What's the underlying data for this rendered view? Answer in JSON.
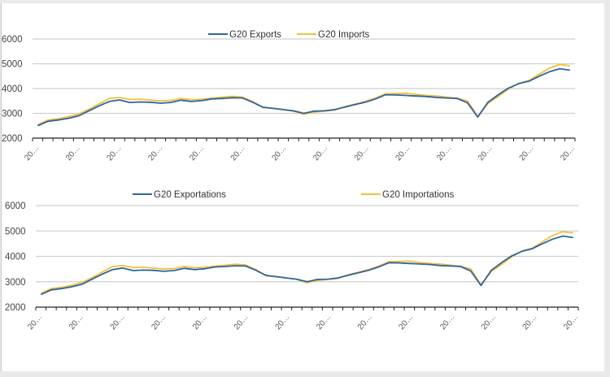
{
  "colors": {
    "exports": "#2e64a0",
    "imports": "#f3c03a"
  },
  "chart_data": [
    {
      "type": "line",
      "title": "",
      "xlabel": "",
      "ylabel": "",
      "ylim": [
        2000,
        6000
      ],
      "yticks": [
        "2000",
        "3000",
        "4000",
        "5000",
        "6000"
      ],
      "grid": true,
      "legend_position": "top-center",
      "x_tick_labels": [
        "20…",
        "20…",
        "20…",
        "20…",
        "20…",
        "20…",
        "20…",
        "20…",
        "20…",
        "20…",
        "20…",
        "20…",
        "20…",
        "20…"
      ],
      "series": [
        {
          "name": "G20 Exports",
          "color_key": "exports",
          "values": [
            2500,
            2680,
            2730,
            2800,
            2900,
            3100,
            3300,
            3480,
            3540,
            3440,
            3460,
            3450,
            3410,
            3440,
            3530,
            3480,
            3510,
            3580,
            3600,
            3630,
            3620,
            3450,
            3250,
            3200,
            3150,
            3100,
            3000,
            3090,
            3100,
            3150,
            3250,
            3350,
            3450,
            3580,
            3750,
            3740,
            3720,
            3700,
            3680,
            3640,
            3620,
            3600,
            3420,
            2850,
            3450,
            3750,
            4020,
            4200,
            4300,
            4500,
            4680,
            4800,
            4740
          ]
        },
        {
          "name": "G20 Imports",
          "color_key": "imports",
          "values": [
            2540,
            2730,
            2780,
            2860,
            2970,
            3160,
            3380,
            3600,
            3640,
            3560,
            3570,
            3540,
            3500,
            3520,
            3600,
            3550,
            3570,
            3610,
            3650,
            3690,
            3660,
            3480,
            3230,
            3200,
            3150,
            3090,
            2960,
            3050,
            3090,
            3130,
            3270,
            3370,
            3480,
            3620,
            3790,
            3800,
            3810,
            3760,
            3720,
            3700,
            3650,
            3610,
            3500,
            2880,
            3400,
            3680,
            3980,
            4210,
            4320,
            4580,
            4820,
            4970,
            4920
          ]
        }
      ]
    },
    {
      "type": "line",
      "title": "",
      "xlabel": "",
      "ylabel": "",
      "ylim": [
        2000,
        6000
      ],
      "yticks": [
        "2000",
        "3000",
        "4000",
        "5000",
        "6000"
      ],
      "grid": true,
      "legend_position": "top",
      "x_tick_labels": [
        "20…",
        "20…",
        "20…",
        "20…",
        "20…",
        "20…",
        "20…",
        "20…",
        "20…",
        "20…",
        "20…",
        "20…",
        "20…",
        "20…"
      ],
      "series": [
        {
          "name": "G20 Exportations",
          "color_key": "exports",
          "values": [
            2500,
            2680,
            2730,
            2800,
            2900,
            3100,
            3300,
            3480,
            3540,
            3440,
            3460,
            3450,
            3410,
            3440,
            3530,
            3480,
            3510,
            3580,
            3600,
            3630,
            3620,
            3450,
            3250,
            3200,
            3150,
            3100,
            3000,
            3090,
            3100,
            3150,
            3250,
            3350,
            3450,
            3580,
            3750,
            3740,
            3720,
            3700,
            3680,
            3640,
            3620,
            3600,
            3420,
            2850,
            3450,
            3750,
            4020,
            4200,
            4300,
            4500,
            4680,
            4800,
            4740
          ]
        },
        {
          "name": "G20 Importations",
          "color_key": "imports",
          "values": [
            2540,
            2730,
            2780,
            2860,
            2970,
            3160,
            3380,
            3600,
            3640,
            3560,
            3570,
            3540,
            3500,
            3520,
            3600,
            3550,
            3570,
            3610,
            3650,
            3690,
            3660,
            3480,
            3230,
            3200,
            3150,
            3090,
            2960,
            3050,
            3090,
            3130,
            3270,
            3370,
            3480,
            3620,
            3790,
            3800,
            3810,
            3760,
            3720,
            3700,
            3650,
            3610,
            3500,
            2880,
            3400,
            3680,
            3980,
            4210,
            4320,
            4580,
            4820,
            4970,
            4920
          ]
        }
      ]
    }
  ]
}
